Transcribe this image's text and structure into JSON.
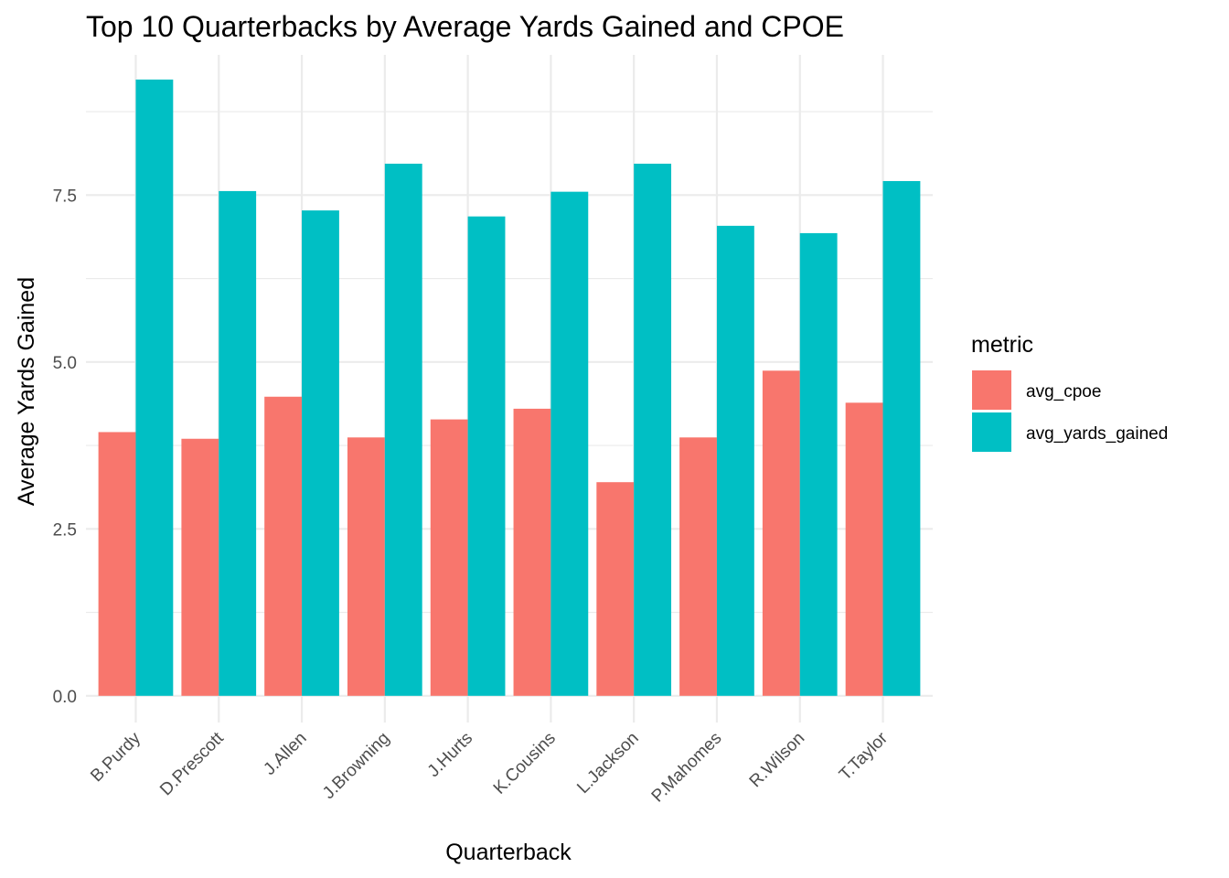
{
  "chart_data": {
    "type": "bar",
    "title": "Top 10 Quarterbacks by Average Yards Gained and CPOE",
    "xlabel": "Quarterback",
    "ylabel": "Average Yards Gained",
    "categories": [
      "B.Purdy",
      "D.Prescott",
      "J.Allen",
      "J.Browning",
      "J.Hurts",
      "K.Cousins",
      "L.Jackson",
      "P.Mahomes",
      "R.Wilson",
      "T.Taylor"
    ],
    "series": [
      {
        "name": "avg_cpoe",
        "color": "#F8766D",
        "values": [
          3.95,
          3.85,
          4.48,
          3.87,
          4.14,
          4.3,
          3.2,
          3.87,
          4.87,
          4.39
        ]
      },
      {
        "name": "avg_yards_gained",
        "color": "#00BFC4",
        "values": [
          9.23,
          7.56,
          7.27,
          7.97,
          7.18,
          7.55,
          7.97,
          7.04,
          6.93,
          7.71
        ]
      }
    ],
    "ylim": [
      -0.4,
      9.6
    ],
    "y_ticks": [
      0.0,
      2.5,
      5.0,
      7.5
    ],
    "y_tick_labels": [
      "0.0",
      "2.5",
      "5.0",
      "7.5"
    ],
    "grid": true,
    "legend": {
      "title": "metric",
      "position": "right"
    }
  }
}
